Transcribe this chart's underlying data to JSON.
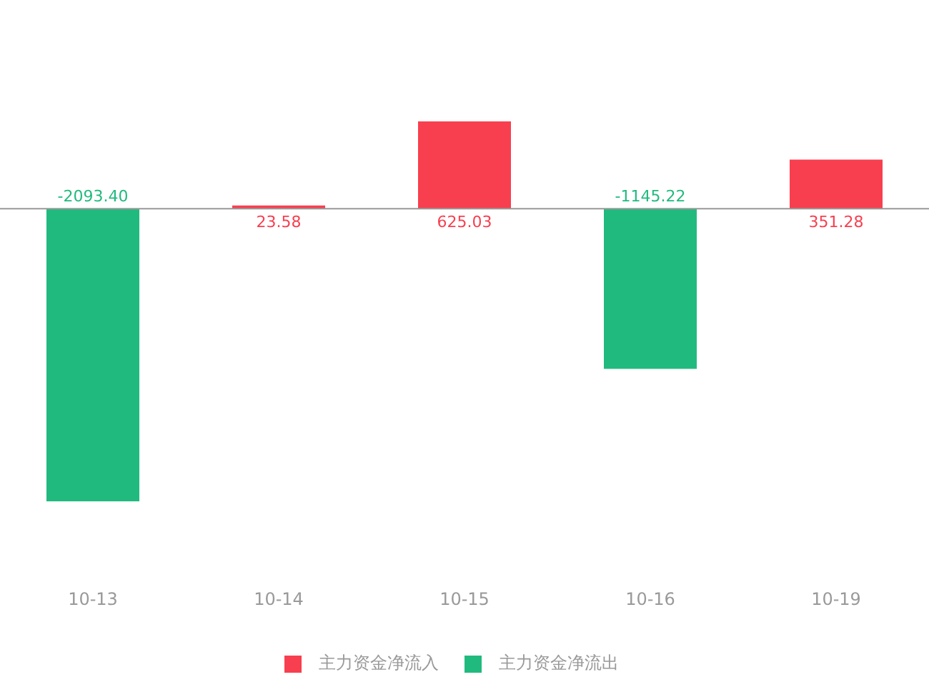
{
  "chart_data": {
    "type": "bar",
    "stacked": true,
    "categories": [
      "10-13",
      "10-14",
      "10-15",
      "10-16",
      "10-19"
    ],
    "series": [
      {
        "name": "主力资金净流入",
        "color": "#f83f4f",
        "values": [
          null,
          23.58,
          625.03,
          null,
          351.28
        ],
        "value_labels": [
          null,
          "23.58",
          "625.03",
          null,
          "351.28"
        ]
      },
      {
        "name": "主力资金净流出",
        "color": "#21ba7e",
        "values": [
          -2093.4,
          null,
          null,
          -1145.22,
          null
        ],
        "value_labels": [
          "-2093.40",
          null,
          null,
          "-1145.22",
          null
        ]
      }
    ],
    "legend": "bottom"
  }
}
